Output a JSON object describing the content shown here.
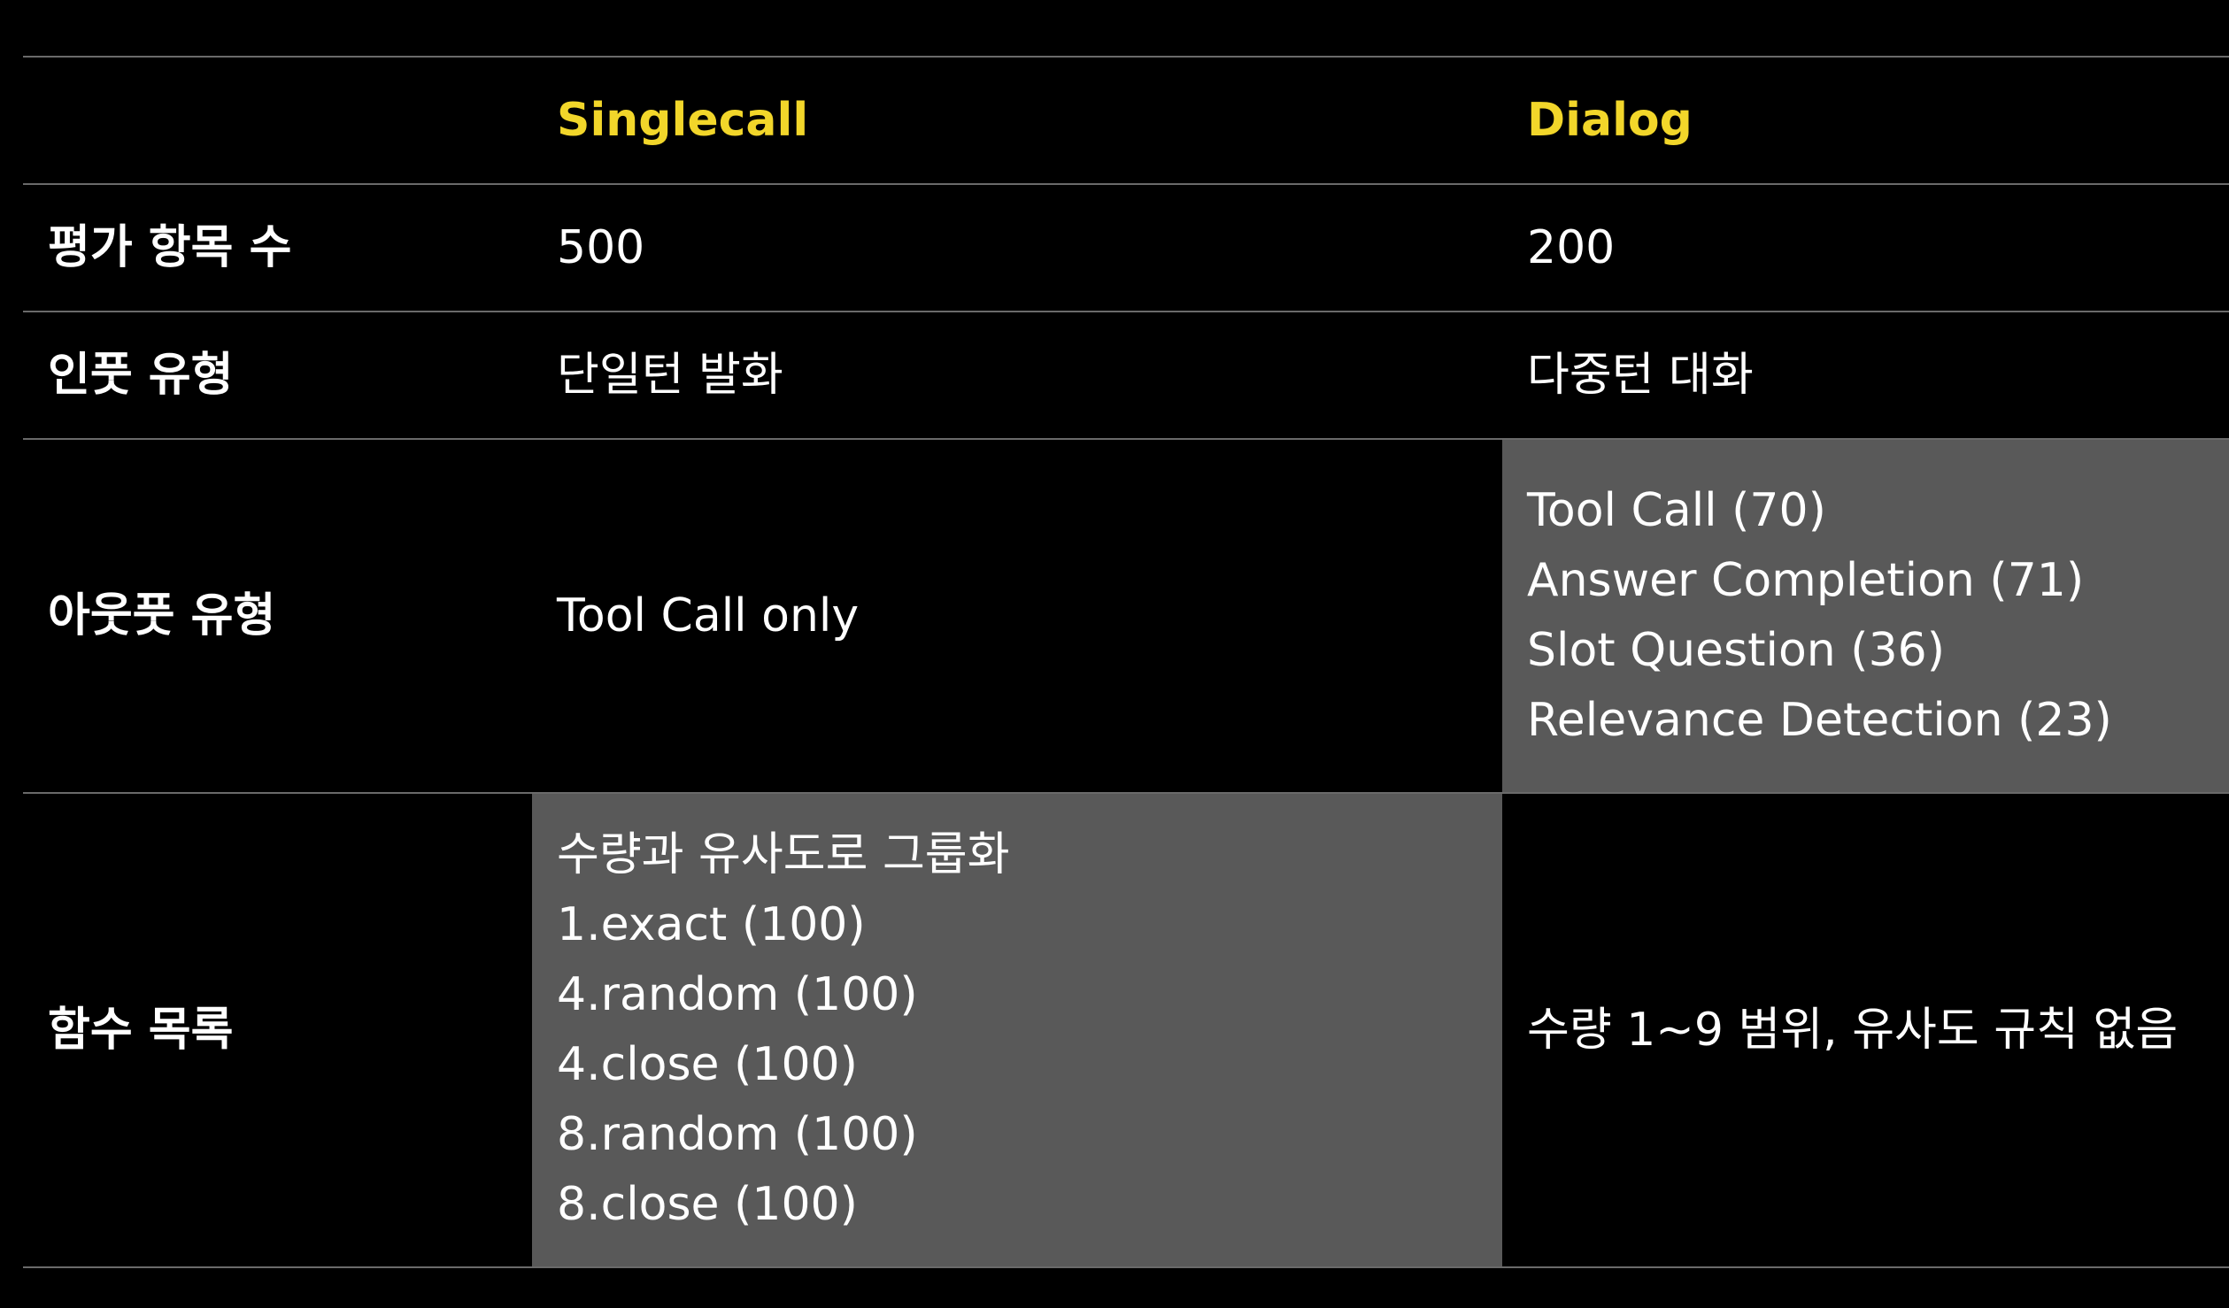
{
  "table": {
    "header": {
      "col1": "",
      "col2": "Singlecall",
      "col3": "Dialog"
    },
    "rows": {
      "count": {
        "label": "평가 항목 수",
        "singlecall": "500",
        "dialog": "200"
      },
      "input": {
        "label": "인풋 유형",
        "singlecall": "단일턴 발화",
        "dialog": "다중턴 대화"
      },
      "output": {
        "label": "아웃풋 유형",
        "singlecall": "Tool Call only",
        "dialog": [
          "Tool Call (70)",
          "Answer Completion (71)",
          "Slot Question (36)",
          "Relevance Detection (23)"
        ]
      },
      "functions": {
        "label": "함수 목록",
        "singlecall": [
          "수량과 유사도로 그룹화",
          "1.exact (100)",
          "4.random (100)",
          "4.close (100)",
          "8.random (100)",
          "8.close (100)"
        ],
        "dialog": "수량 1~9 범위, 유사도 규칙 없음"
      }
    }
  },
  "colors": {
    "background": "#000000",
    "header_accent": "#f2d62a",
    "shaded_cell": "#595959",
    "rule": "#6a6a6a",
    "text": "#ffffff"
  }
}
